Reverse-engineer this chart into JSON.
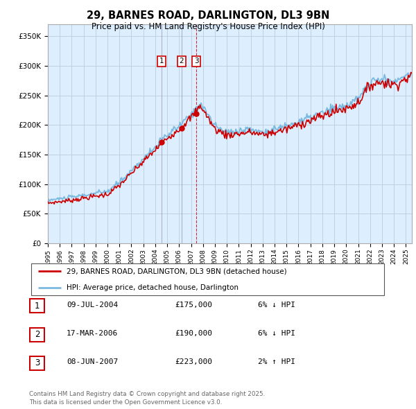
{
  "title": "29, BARNES ROAD, DARLINGTON, DL3 9BN",
  "subtitle": "Price paid vs. HM Land Registry's House Price Index (HPI)",
  "ylabel_vals": [
    0,
    50000,
    100000,
    150000,
    200000,
    250000,
    300000,
    350000
  ],
  "xlim_start": 1995.0,
  "xlim_end": 2025.5,
  "ylim": [
    0,
    370000
  ],
  "transactions": [
    {
      "date": 2004.52,
      "price": 175000,
      "label": "1"
    },
    {
      "date": 2006.21,
      "price": 190000,
      "label": "2"
    },
    {
      "date": 2007.44,
      "price": 223000,
      "label": "3"
    }
  ],
  "table_rows": [
    {
      "num": "1",
      "date": "09-JUL-2004",
      "price": "£175,000",
      "pct": "6%",
      "dir": "↓",
      "vs": "HPI"
    },
    {
      "num": "2",
      "date": "17-MAR-2006",
      "price": "£190,000",
      "pct": "6%",
      "dir": "↓",
      "vs": "HPI"
    },
    {
      "num": "3",
      "date": "08-JUN-2007",
      "price": "£223,000",
      "pct": "2%",
      "dir": "↑",
      "vs": "HPI"
    }
  ],
  "legend_line1": "29, BARNES ROAD, DARLINGTON, DL3 9BN (detached house)",
  "legend_line2": "HPI: Average price, detached house, Darlington",
  "footer": "Contains HM Land Registry data © Crown copyright and database right 2025.\nThis data is licensed under the Open Government Licence v3.0.",
  "hpi_color": "#7ab9e0",
  "price_color": "#cc0000",
  "vline_solid_color": "#aaaacc",
  "vline_dashed_color": "#cc0000",
  "bg_color": "#ddeeff",
  "grid_color": "#bbccdd"
}
